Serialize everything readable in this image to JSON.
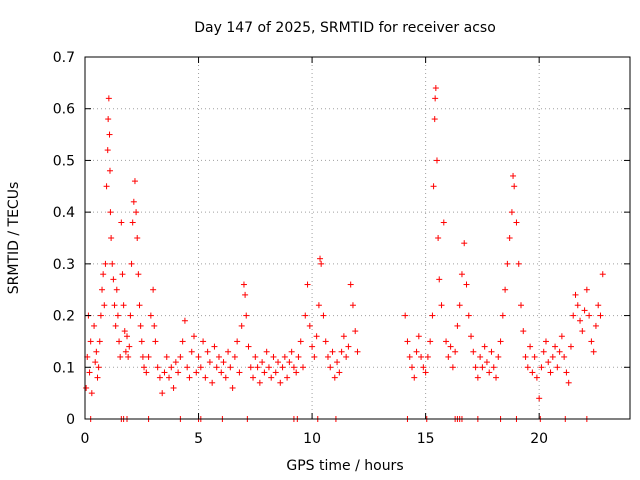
{
  "chart_data": {
    "type": "scatter",
    "title": "Day 147 of 2025, SRMTID for receiver acso",
    "xlabel": "GPS time / hours",
    "ylabel": "SRMTID / TECUs",
    "xlim": [
      0,
      24
    ],
    "ylim": [
      0,
      0.7
    ],
    "x_ticks": [
      0,
      5,
      10,
      15,
      20
    ],
    "x_tick_labels": [
      "0",
      "5",
      "10",
      "15",
      "20"
    ],
    "y_ticks": [
      0,
      0.1,
      0.2,
      0.3,
      0.4,
      0.5,
      0.6,
      0.7
    ],
    "y_tick_labels": [
      "0",
      "0.1",
      "0.2",
      "0.3",
      "0.4",
      "0.5",
      "0.6",
      "0.7"
    ],
    "grid": true,
    "marker": "+",
    "marker_color": "#ff0000",
    "series": [
      {
        "name": "SRMTID",
        "points": [
          [
            0.05,
            0.06
          ],
          [
            0.1,
            0.12
          ],
          [
            0.15,
            0.2
          ],
          [
            0.2,
            0.09
          ],
          [
            0.25,
            0.15
          ],
          [
            0.3,
            0.05
          ],
          [
            0.4,
            0.18
          ],
          [
            0.45,
            0.11
          ],
          [
            0.5,
            0.13
          ],
          [
            0.55,
            0.08
          ],
          [
            0.6,
            0.1
          ],
          [
            0.65,
            0.15
          ],
          [
            0.7,
            0.2
          ],
          [
            0.75,
            0.25
          ],
          [
            0.8,
            0.28
          ],
          [
            0.85,
            0.22
          ],
          [
            0.9,
            0.3
          ],
          [
            0.95,
            0.45
          ],
          [
            1.0,
            0.52
          ],
          [
            1.02,
            0.58
          ],
          [
            1.05,
            0.62
          ],
          [
            1.08,
            0.55
          ],
          [
            1.1,
            0.48
          ],
          [
            1.12,
            0.4
          ],
          [
            1.15,
            0.35
          ],
          [
            1.2,
            0.3
          ],
          [
            1.25,
            0.27
          ],
          [
            1.3,
            0.22
          ],
          [
            1.35,
            0.18
          ],
          [
            1.4,
            0.25
          ],
          [
            1.45,
            0.2
          ],
          [
            1.5,
            0.15
          ],
          [
            1.55,
            0.12
          ],
          [
            1.6,
            0.38
          ],
          [
            1.65,
            0.28
          ],
          [
            1.7,
            0.22
          ],
          [
            1.75,
            0.17
          ],
          [
            1.8,
            0.13
          ],
          [
            1.85,
            0.16
          ],
          [
            1.9,
            0.12
          ],
          [
            1.95,
            0.14
          ],
          [
            2.0,
            0.2
          ],
          [
            2.05,
            0.3
          ],
          [
            2.1,
            0.38
          ],
          [
            2.15,
            0.42
          ],
          [
            2.2,
            0.46
          ],
          [
            2.25,
            0.4
          ],
          [
            2.3,
            0.35
          ],
          [
            2.35,
            0.28
          ],
          [
            2.4,
            0.22
          ],
          [
            2.45,
            0.18
          ],
          [
            2.5,
            0.15
          ],
          [
            2.55,
            0.12
          ],
          [
            2.6,
            0.1
          ],
          [
            2.7,
            0.09
          ],
          [
            2.8,
            0.12
          ],
          [
            2.9,
            0.2
          ],
          [
            3.0,
            0.25
          ],
          [
            3.05,
            0.18
          ],
          [
            3.1,
            0.15
          ],
          [
            3.2,
            0.1
          ],
          [
            3.3,
            0.08
          ],
          [
            3.4,
            0.05
          ],
          [
            3.5,
            0.09
          ],
          [
            3.6,
            0.12
          ],
          [
            3.7,
            0.08
          ],
          [
            3.8,
            0.1
          ],
          [
            3.9,
            0.06
          ],
          [
            4.0,
            0.11
          ],
          [
            4.1,
            0.09
          ],
          [
            4.2,
            0.12
          ],
          [
            4.3,
            0.15
          ],
          [
            4.4,
            0.19
          ],
          [
            4.5,
            0.1
          ],
          [
            4.6,
            0.08
          ],
          [
            4.7,
            0.13
          ],
          [
            4.8,
            0.16
          ],
          [
            4.9,
            0.09
          ],
          [
            5.0,
            0.12
          ],
          [
            5.1,
            0.1
          ],
          [
            5.2,
            0.15
          ],
          [
            5.3,
            0.08
          ],
          [
            5.4,
            0.13
          ],
          [
            5.5,
            0.11
          ],
          [
            5.6,
            0.07
          ],
          [
            5.7,
            0.14
          ],
          [
            5.8,
            0.1
          ],
          [
            5.9,
            0.12
          ],
          [
            6.0,
            0.09
          ],
          [
            6.1,
            0.11
          ],
          [
            6.2,
            0.08
          ],
          [
            6.3,
            0.13
          ],
          [
            6.4,
            0.1
          ],
          [
            6.5,
            0.06
          ],
          [
            6.6,
            0.12
          ],
          [
            6.7,
            0.15
          ],
          [
            6.8,
            0.09
          ],
          [
            6.9,
            0.18
          ],
          [
            7.0,
            0.26
          ],
          [
            7.05,
            0.24
          ],
          [
            7.1,
            0.2
          ],
          [
            7.2,
            0.14
          ],
          [
            7.3,
            0.1
          ],
          [
            7.4,
            0.08
          ],
          [
            7.5,
            0.12
          ],
          [
            7.6,
            0.1
          ],
          [
            7.7,
            0.07
          ],
          [
            7.8,
            0.11
          ],
          [
            7.9,
            0.09
          ],
          [
            8.0,
            0.13
          ],
          [
            8.1,
            0.1
          ],
          [
            8.2,
            0.08
          ],
          [
            8.3,
            0.12
          ],
          [
            8.4,
            0.09
          ],
          [
            8.5,
            0.11
          ],
          [
            8.6,
            0.07
          ],
          [
            8.7,
            0.1
          ],
          [
            8.8,
            0.12
          ],
          [
            8.9,
            0.08
          ],
          [
            9.0,
            0.11
          ],
          [
            9.1,
            0.13
          ],
          [
            9.2,
            0.1
          ],
          [
            9.3,
            0.09
          ],
          [
            9.4,
            0.12
          ],
          [
            9.5,
            0.15
          ],
          [
            9.6,
            0.1
          ],
          [
            9.7,
            0.2
          ],
          [
            9.8,
            0.26
          ],
          [
            9.9,
            0.18
          ],
          [
            10.0,
            0.14
          ],
          [
            10.1,
            0.12
          ],
          [
            10.2,
            0.16
          ],
          [
            10.3,
            0.22
          ],
          [
            10.35,
            0.31
          ],
          [
            10.4,
            0.3
          ],
          [
            10.5,
            0.2
          ],
          [
            10.6,
            0.15
          ],
          [
            10.7,
            0.12
          ],
          [
            10.8,
            0.1
          ],
          [
            10.9,
            0.13
          ],
          [
            11.0,
            0.08
          ],
          [
            11.1,
            0.11
          ],
          [
            11.2,
            0.09
          ],
          [
            11.3,
            0.13
          ],
          [
            11.4,
            0.16
          ],
          [
            11.5,
            0.12
          ],
          [
            11.6,
            0.14
          ],
          [
            11.7,
            0.26
          ],
          [
            11.8,
            0.22
          ],
          [
            11.9,
            0.17
          ],
          [
            12.0,
            0.13
          ],
          [
            14.1,
            0.2
          ],
          [
            14.2,
            0.15
          ],
          [
            14.3,
            0.12
          ],
          [
            14.4,
            0.1
          ],
          [
            14.5,
            0.08
          ],
          [
            14.6,
            0.13
          ],
          [
            14.7,
            0.16
          ],
          [
            14.8,
            0.12
          ],
          [
            14.9,
            0.1
          ],
          [
            15.0,
            0.09
          ],
          [
            15.1,
            0.12
          ],
          [
            15.2,
            0.15
          ],
          [
            15.3,
            0.2
          ],
          [
            15.35,
            0.45
          ],
          [
            15.4,
            0.58
          ],
          [
            15.42,
            0.62
          ],
          [
            15.45,
            0.64
          ],
          [
            15.5,
            0.5
          ],
          [
            15.55,
            0.35
          ],
          [
            15.6,
            0.27
          ],
          [
            15.7,
            0.22
          ],
          [
            15.8,
            0.38
          ],
          [
            15.9,
            0.15
          ],
          [
            16.0,
            0.12
          ],
          [
            16.1,
            0.14
          ],
          [
            16.2,
            0.1
          ],
          [
            16.3,
            0.13
          ],
          [
            16.4,
            0.18
          ],
          [
            16.5,
            0.22
          ],
          [
            16.6,
            0.28
          ],
          [
            16.7,
            0.34
          ],
          [
            16.8,
            0.26
          ],
          [
            16.9,
            0.2
          ],
          [
            17.0,
            0.16
          ],
          [
            17.1,
            0.13
          ],
          [
            17.2,
            0.1
          ],
          [
            17.3,
            0.08
          ],
          [
            17.4,
            0.12
          ],
          [
            17.5,
            0.1
          ],
          [
            17.6,
            0.14
          ],
          [
            17.7,
            0.11
          ],
          [
            17.8,
            0.09
          ],
          [
            17.9,
            0.13
          ],
          [
            18.0,
            0.1
          ],
          [
            18.1,
            0.08
          ],
          [
            18.2,
            0.12
          ],
          [
            18.3,
            0.15
          ],
          [
            18.4,
            0.2
          ],
          [
            18.5,
            0.25
          ],
          [
            18.6,
            0.3
          ],
          [
            18.7,
            0.35
          ],
          [
            18.8,
            0.4
          ],
          [
            18.85,
            0.47
          ],
          [
            18.9,
            0.45
          ],
          [
            19.0,
            0.38
          ],
          [
            19.1,
            0.3
          ],
          [
            19.2,
            0.22
          ],
          [
            19.3,
            0.17
          ],
          [
            19.4,
            0.12
          ],
          [
            19.5,
            0.1
          ],
          [
            19.6,
            0.14
          ],
          [
            19.7,
            0.09
          ],
          [
            19.8,
            0.12
          ],
          [
            19.9,
            0.08
          ],
          [
            20.0,
            0.04
          ],
          [
            20.1,
            0.1
          ],
          [
            20.2,
            0.13
          ],
          [
            20.3,
            0.15
          ],
          [
            20.4,
            0.11
          ],
          [
            20.5,
            0.09
          ],
          [
            20.6,
            0.12
          ],
          [
            20.7,
            0.14
          ],
          [
            20.8,
            0.1
          ],
          [
            20.9,
            0.13
          ],
          [
            21.0,
            0.16
          ],
          [
            21.1,
            0.12
          ],
          [
            21.2,
            0.09
          ],
          [
            21.3,
            0.07
          ],
          [
            21.4,
            0.14
          ],
          [
            21.5,
            0.2
          ],
          [
            21.6,
            0.24
          ],
          [
            21.7,
            0.22
          ],
          [
            21.8,
            0.19
          ],
          [
            21.9,
            0.17
          ],
          [
            22.0,
            0.21
          ],
          [
            22.1,
            0.25
          ],
          [
            22.2,
            0.2
          ],
          [
            22.3,
            0.15
          ],
          [
            22.4,
            0.13
          ],
          [
            22.5,
            0.18
          ],
          [
            22.6,
            0.22
          ],
          [
            22.7,
            0.2
          ],
          [
            22.8,
            0.28
          ]
        ]
      }
    ],
    "baseline_marks_x": [
      0.25,
      1.6,
      1.7,
      1.85,
      2.8,
      4.2,
      5.0,
      5.1,
      6.05,
      7.15,
      9.2,
      9.35,
      10.25,
      11.05,
      14.2,
      15.05,
      16.3,
      16.4,
      16.5,
      16.6,
      17.3,
      18.3,
      19.0,
      20.05,
      21.15,
      22.1
    ]
  }
}
